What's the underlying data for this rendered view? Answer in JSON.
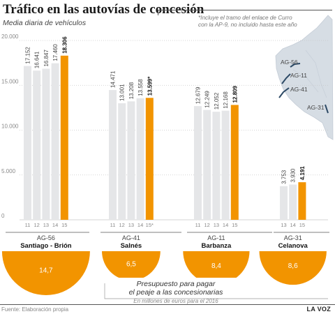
{
  "header": {
    "title": "Tráfico en las autovías de concesión",
    "subtitle": "Media diaria de vehículos",
    "note": "*Incluye el tramo del enlace de Curro con la AP-9, no incluido hasta este año"
  },
  "footer": {
    "source": "Fuente: Elaboración propia",
    "logo": "LA VOZ"
  },
  "colors": {
    "bar": "#e5e6e8",
    "highlight": "#f29400",
    "grid": "#c8c8c8",
    "axis_text": "#888888",
    "map_land": "#d6dde4",
    "route": "#2d4a66"
  },
  "chart_data": {
    "type": "bar",
    "ylim": [
      0,
      20000
    ],
    "yticks": [
      0,
      5000,
      10000,
      15000,
      20000
    ],
    "ytick_labels": [
      "0",
      "5.000",
      "10.000",
      "15.000",
      "20.000"
    ],
    "groups": [
      {
        "route": "AG-56",
        "name": "Santiago - Brión",
        "x_labels": [
          "11",
          "12",
          "13",
          "14",
          "15"
        ],
        "values": [
          17152,
          16641,
          16847,
          17460,
          18306
        ],
        "value_labels": [
          "17.152",
          "16.641",
          "16.847",
          "17.460",
          "18.306"
        ],
        "budget": 14.7,
        "budget_label": "14,7"
      },
      {
        "route": "AG-41",
        "name": "Salnés",
        "x_labels": [
          "11",
          "12",
          "13",
          "14",
          "15*"
        ],
        "values": [
          14471,
          13001,
          13208,
          13558,
          13599
        ],
        "value_labels": [
          "14.471",
          "13.001",
          "13.208",
          "13.558",
          "13.599*"
        ],
        "budget": 6.5,
        "budget_label": "6,5"
      },
      {
        "route": "AG-11",
        "name": "Barbanza",
        "x_labels": [
          "11",
          "12",
          "13",
          "14",
          "15"
        ],
        "values": [
          12679,
          12249,
          12052,
          12168,
          12809
        ],
        "value_labels": [
          "12.679",
          "12.249",
          "12.052",
          "12.168",
          "12.809"
        ],
        "budget": 8.4,
        "budget_label": "8,4"
      },
      {
        "route": "AG-31",
        "name": "Celanova",
        "x_labels": [
          "13",
          "14",
          "15"
        ],
        "values": [
          3753,
          3930,
          4191
        ],
        "value_labels": [
          "3.753",
          "3.930",
          "4.191"
        ],
        "budget": 8.6,
        "budget_label": "8,6"
      }
    ],
    "budget_title": "Presupuesto para pagar el peaje a las concesionarias",
    "budget_title_line1": "Presupuesto para pagar",
    "budget_title_line2": "el peaje a las concesionarias",
    "budget_subtitle": "En millones de euros para el 2016"
  },
  "map": {
    "labels": [
      "AG-56",
      "AG-11",
      "AG-41",
      "AG-31"
    ]
  }
}
